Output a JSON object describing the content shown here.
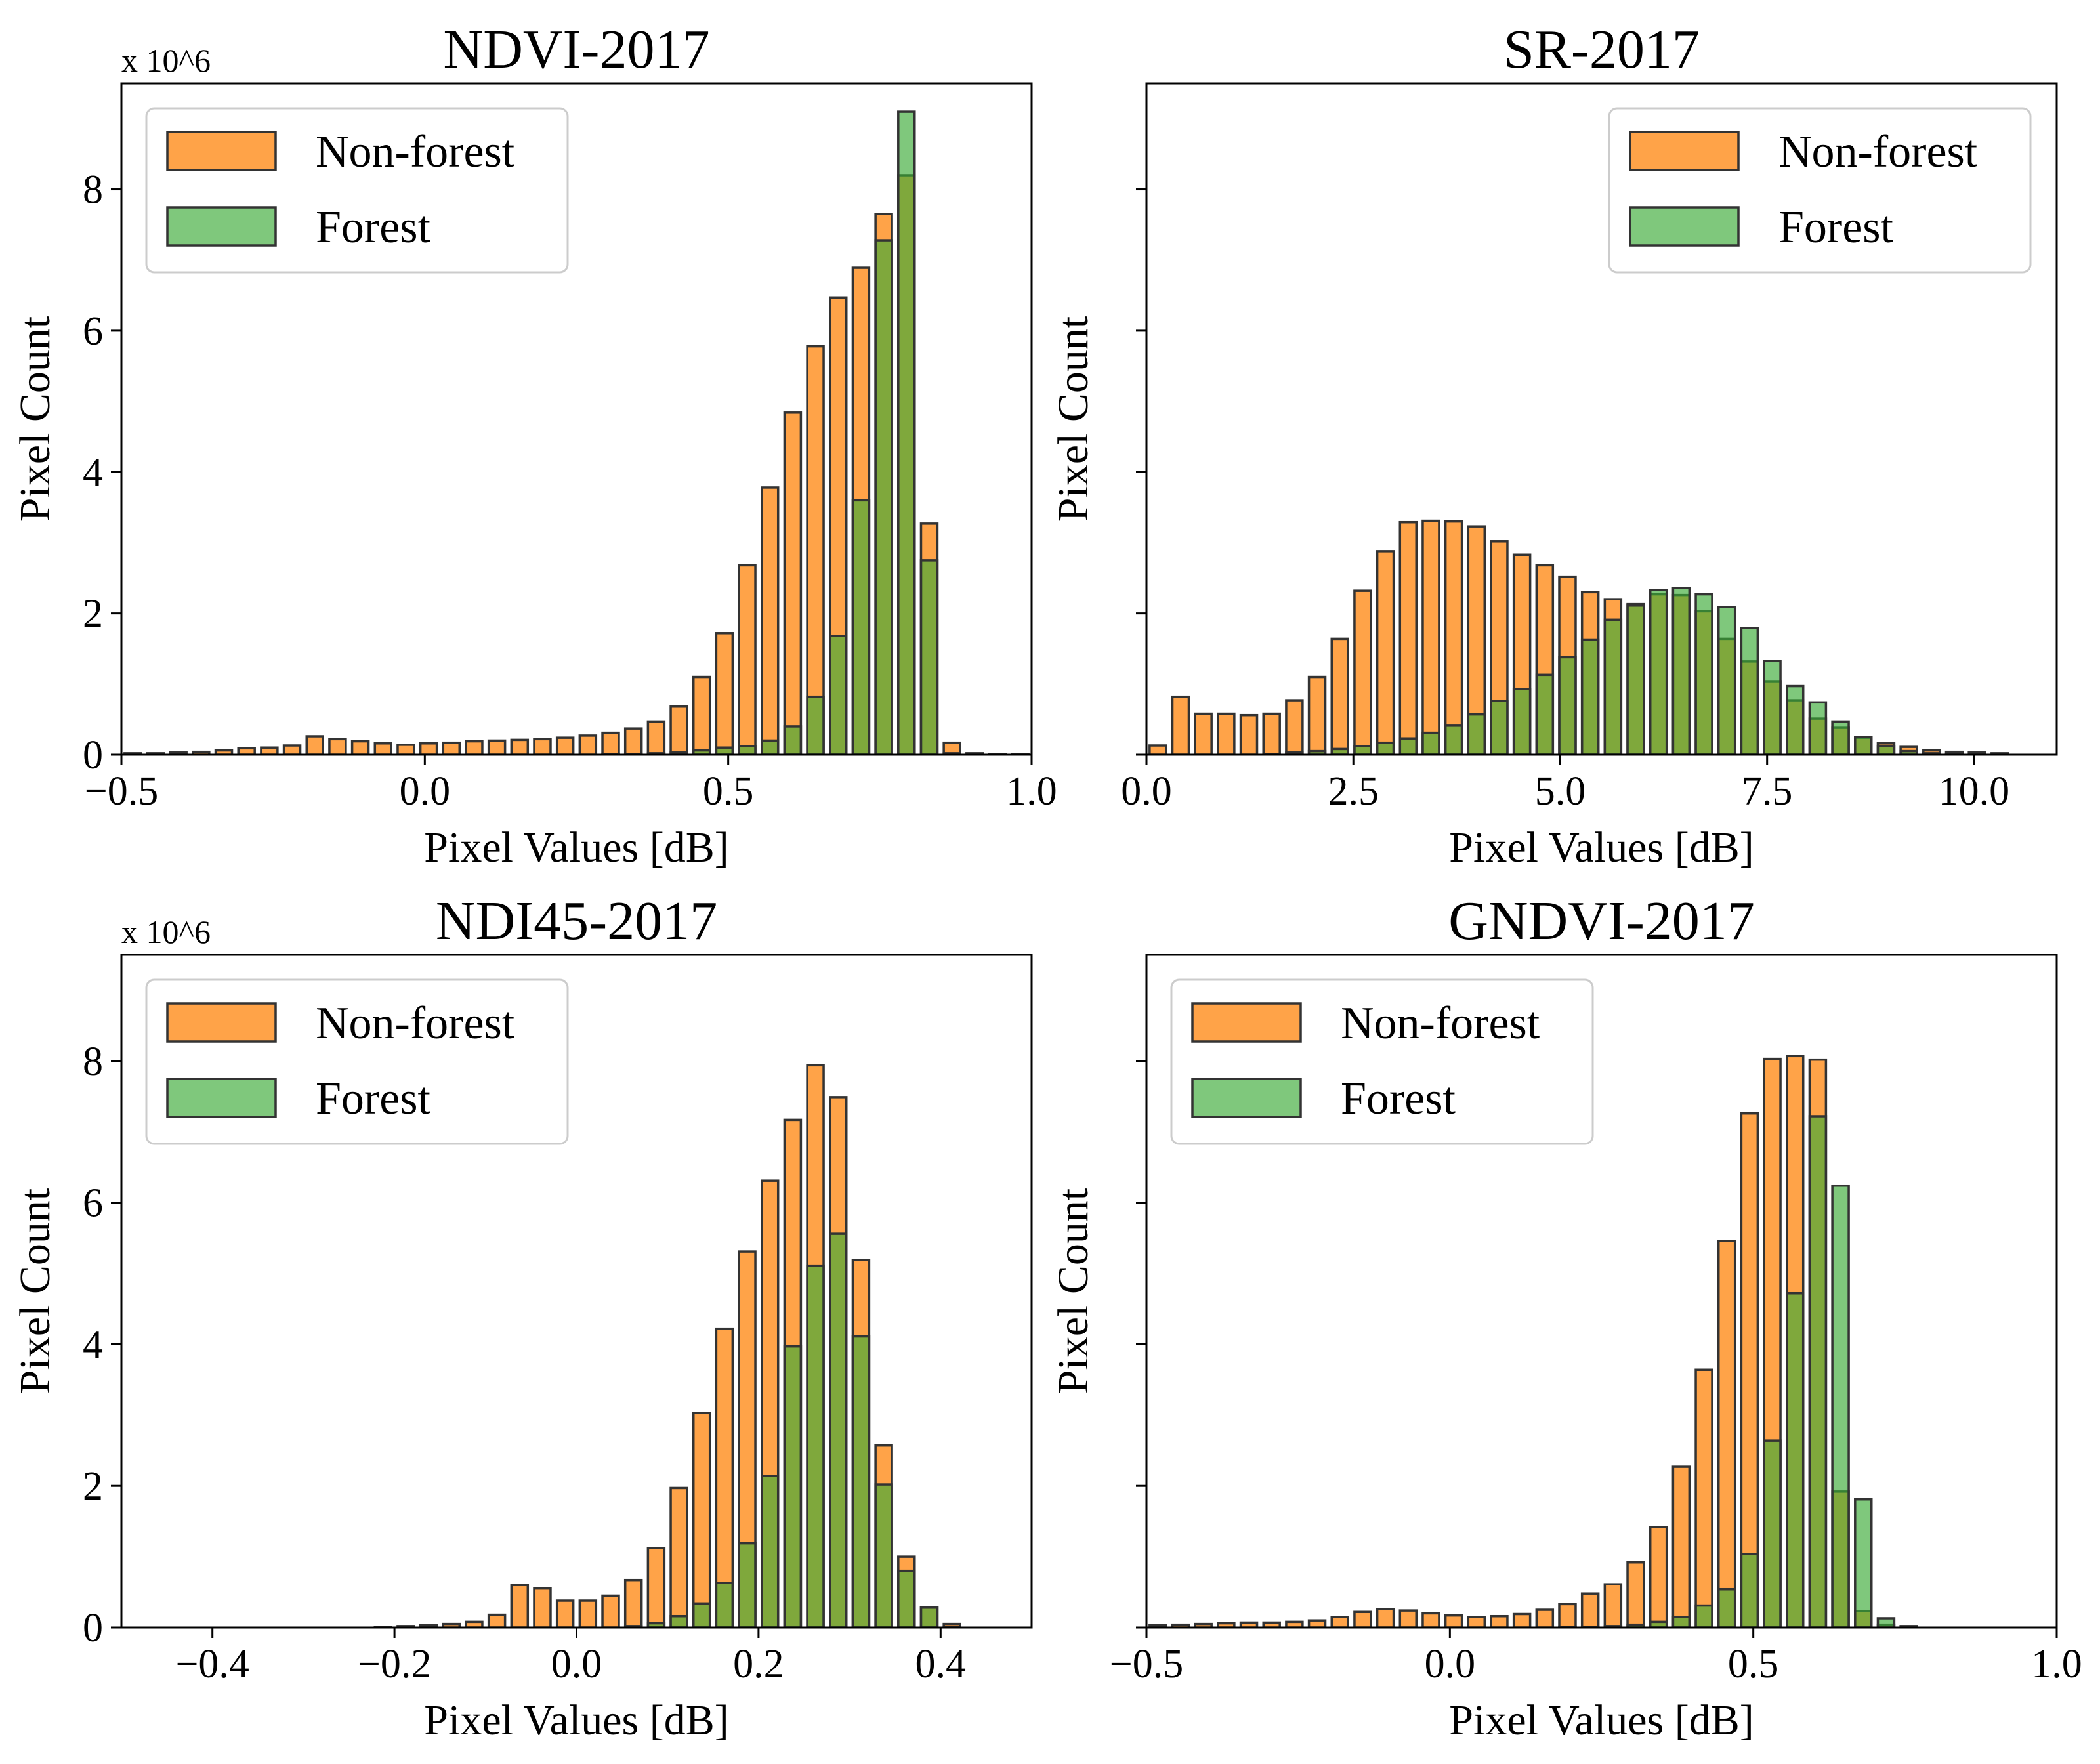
{
  "figure": {
    "colors": {
      "nonforest": "#ff8c1a",
      "forest": "#3aaa35",
      "edge": "#333333"
    }
  },
  "chart_data": [
    {
      "type": "bar",
      "title": "NDVI-2017",
      "xlabel": "Pixel Values [dB]",
      "ylabel": "Pixel Count",
      "multiplier": "x 10^6",
      "xlim": [
        -0.5,
        1.0
      ],
      "ylim": [
        0,
        9.5
      ],
      "xticks": [
        -0.5,
        0.0,
        0.5,
        1.0
      ],
      "xtick_labels": [
        "−0.5",
        "0.0",
        "0.5",
        "1.0"
      ],
      "yticks": [
        0,
        2,
        4,
        6,
        8
      ],
      "ytick_labels": [
        "0",
        "2",
        "4",
        "6",
        "8"
      ],
      "legend_position": "top-left",
      "x_start": -0.5,
      "bin_width": 0.0375,
      "series": [
        {
          "name": "Non-forest",
          "values": [
            0.02,
            0.02,
            0.03,
            0.04,
            0.06,
            0.09,
            0.1,
            0.13,
            0.26,
            0.22,
            0.19,
            0.16,
            0.14,
            0.16,
            0.17,
            0.19,
            0.2,
            0.21,
            0.22,
            0.24,
            0.27,
            0.31,
            0.37,
            0.47,
            0.68,
            1.1,
            1.72,
            2.68,
            3.78,
            4.84,
            5.78,
            6.47,
            6.89,
            7.65,
            8.2,
            3.27,
            0.17,
            0.02,
            0.01,
            0.01
          ]
        },
        {
          "name": "Forest",
          "values": [
            0,
            0,
            0,
            0,
            0,
            0,
            0,
            0,
            0,
            0,
            0,
            0,
            0,
            0,
            0,
            0,
            0,
            0,
            0,
            0,
            0,
            0.01,
            0.01,
            0.02,
            0.03,
            0.06,
            0.1,
            0.12,
            0.2,
            0.4,
            0.82,
            1.68,
            3.6,
            7.28,
            9.1,
            2.75,
            0.02,
            0,
            0,
            0
          ]
        }
      ]
    },
    {
      "type": "bar",
      "title": "SR-2017",
      "xlabel": "Pixel Values [dB]",
      "ylabel": "Pixel Count",
      "xlim": [
        0,
        11
      ],
      "ylim": [
        0,
        9.5
      ],
      "xticks": [
        0.0,
        2.5,
        5.0,
        7.5,
        10.0
      ],
      "xtick_labels": [
        "0.0",
        "2.5",
        "5.0",
        "7.5",
        "10.0"
      ],
      "yticks": [
        0,
        2,
        4,
        6,
        8
      ],
      "ytick_labels": [
        "",
        "",
        "",
        "",
        ""
      ],
      "legend_position": "top-right",
      "x_start": 0.0,
      "bin_width": 0.275,
      "series": [
        {
          "name": "Non-forest",
          "values": [
            0.13,
            0.82,
            0.58,
            0.58,
            0.56,
            0.58,
            0.77,
            1.1,
            1.64,
            2.32,
            2.88,
            3.29,
            3.31,
            3.3,
            3.23,
            3.02,
            2.83,
            2.68,
            2.52,
            2.3,
            2.2,
            2.13,
            2.27,
            2.26,
            2.03,
            1.64,
            1.32,
            1.04,
            0.77,
            0.51,
            0.38,
            0.24,
            0.16,
            0.11,
            0.06,
            0.04,
            0.03,
            0.02
          ]
        },
        {
          "name": "Forest",
          "values": [
            0,
            0,
            0,
            0,
            0,
            0.01,
            0.03,
            0.05,
            0.08,
            0.12,
            0.17,
            0.23,
            0.31,
            0.41,
            0.57,
            0.76,
            0.93,
            1.13,
            1.38,
            1.63,
            1.91,
            2.11,
            2.33,
            2.36,
            2.27,
            2.09,
            1.79,
            1.33,
            0.97,
            0.74,
            0.47,
            0.25,
            0.12,
            0.05,
            0.02,
            0.01,
            0,
            0
          ]
        }
      ]
    },
    {
      "type": "bar",
      "title": "NDI45-2017",
      "xlabel": "Pixel Values [dB]",
      "ylabel": "Pixel Count",
      "multiplier": "x 10^6",
      "xlim": [
        -0.5,
        0.5
      ],
      "ylim": [
        0,
        9.5
      ],
      "xticks": [
        -0.4,
        -0.2,
        0.0,
        0.2,
        0.4
      ],
      "xtick_labels": [
        "−0.4",
        "−0.2",
        "0.0",
        "0.2",
        "0.4"
      ],
      "yticks": [
        0,
        2,
        4,
        6,
        8
      ],
      "ytick_labels": [
        "0",
        "2",
        "4",
        "6",
        "8"
      ],
      "legend_position": "top-left",
      "x_start": -0.5,
      "bin_width": 0.025,
      "series": [
        {
          "name": "Non-forest",
          "values": [
            0,
            0,
            0,
            0,
            0,
            0,
            0,
            0,
            0,
            0,
            0,
            0.01,
            0.02,
            0.03,
            0.05,
            0.08,
            0.18,
            0.6,
            0.55,
            0.38,
            0.38,
            0.45,
            0.67,
            1.12,
            1.97,
            3.03,
            4.22,
            5.31,
            6.31,
            7.17,
            7.94,
            7.49,
            5.19,
            2.57,
            1,
            0.28,
            0.05,
            0
          ]
        },
        {
          "name": "Forest",
          "values": [
            0,
            0,
            0,
            0,
            0,
            0,
            0,
            0,
            0,
            0,
            0,
            0,
            0,
            0,
            0,
            0,
            0,
            0,
            0,
            0,
            0,
            0,
            0.02,
            0.06,
            0.16,
            0.34,
            0.63,
            1.19,
            2.14,
            3.97,
            5.11,
            5.56,
            4.11,
            2.02,
            0.8,
            0.28,
            0.01,
            0
          ]
        }
      ]
    },
    {
      "type": "bar",
      "title": "GNDVI-2017",
      "xlabel": "Pixel Values [dB]",
      "ylabel": "Pixel Count",
      "xlim": [
        -0.5,
        1.0
      ],
      "ylim": [
        0,
        9.5
      ],
      "xticks": [
        -0.5,
        0.0,
        0.5,
        1.0
      ],
      "xtick_labels": [
        "−0.5",
        "0.0",
        "0.5",
        "1.0"
      ],
      "yticks": [
        0,
        2,
        4,
        6,
        8
      ],
      "ytick_labels": [
        "",
        "",
        "",
        "",
        ""
      ],
      "legend_position": "top-left",
      "x_start": -0.5,
      "bin_width": 0.0375,
      "series": [
        {
          "name": "Non-forest",
          "values": [
            0.03,
            0.04,
            0.05,
            0.06,
            0.07,
            0.07,
            0.08,
            0.1,
            0.15,
            0.22,
            0.26,
            0.24,
            0.2,
            0.17,
            0.15,
            0.16,
            0.19,
            0.25,
            0.33,
            0.48,
            0.61,
            0.92,
            1.42,
            2.27,
            3.64,
            5.46,
            7.26,
            8.03,
            8.07,
            8.02,
            1.92,
            0.23,
            0.04,
            0.02
          ]
        },
        {
          "name": "Forest",
          "values": [
            0,
            0,
            0,
            0,
            0,
            0,
            0,
            0,
            0,
            0,
            0,
            0,
            0,
            0,
            0,
            0,
            0,
            0,
            0.01,
            0.01,
            0.02,
            0.04,
            0.08,
            0.15,
            0.31,
            0.54,
            1.04,
            2.64,
            4.72,
            7.22,
            6.24,
            1.81,
            0.13,
            0
          ]
        }
      ]
    }
  ]
}
